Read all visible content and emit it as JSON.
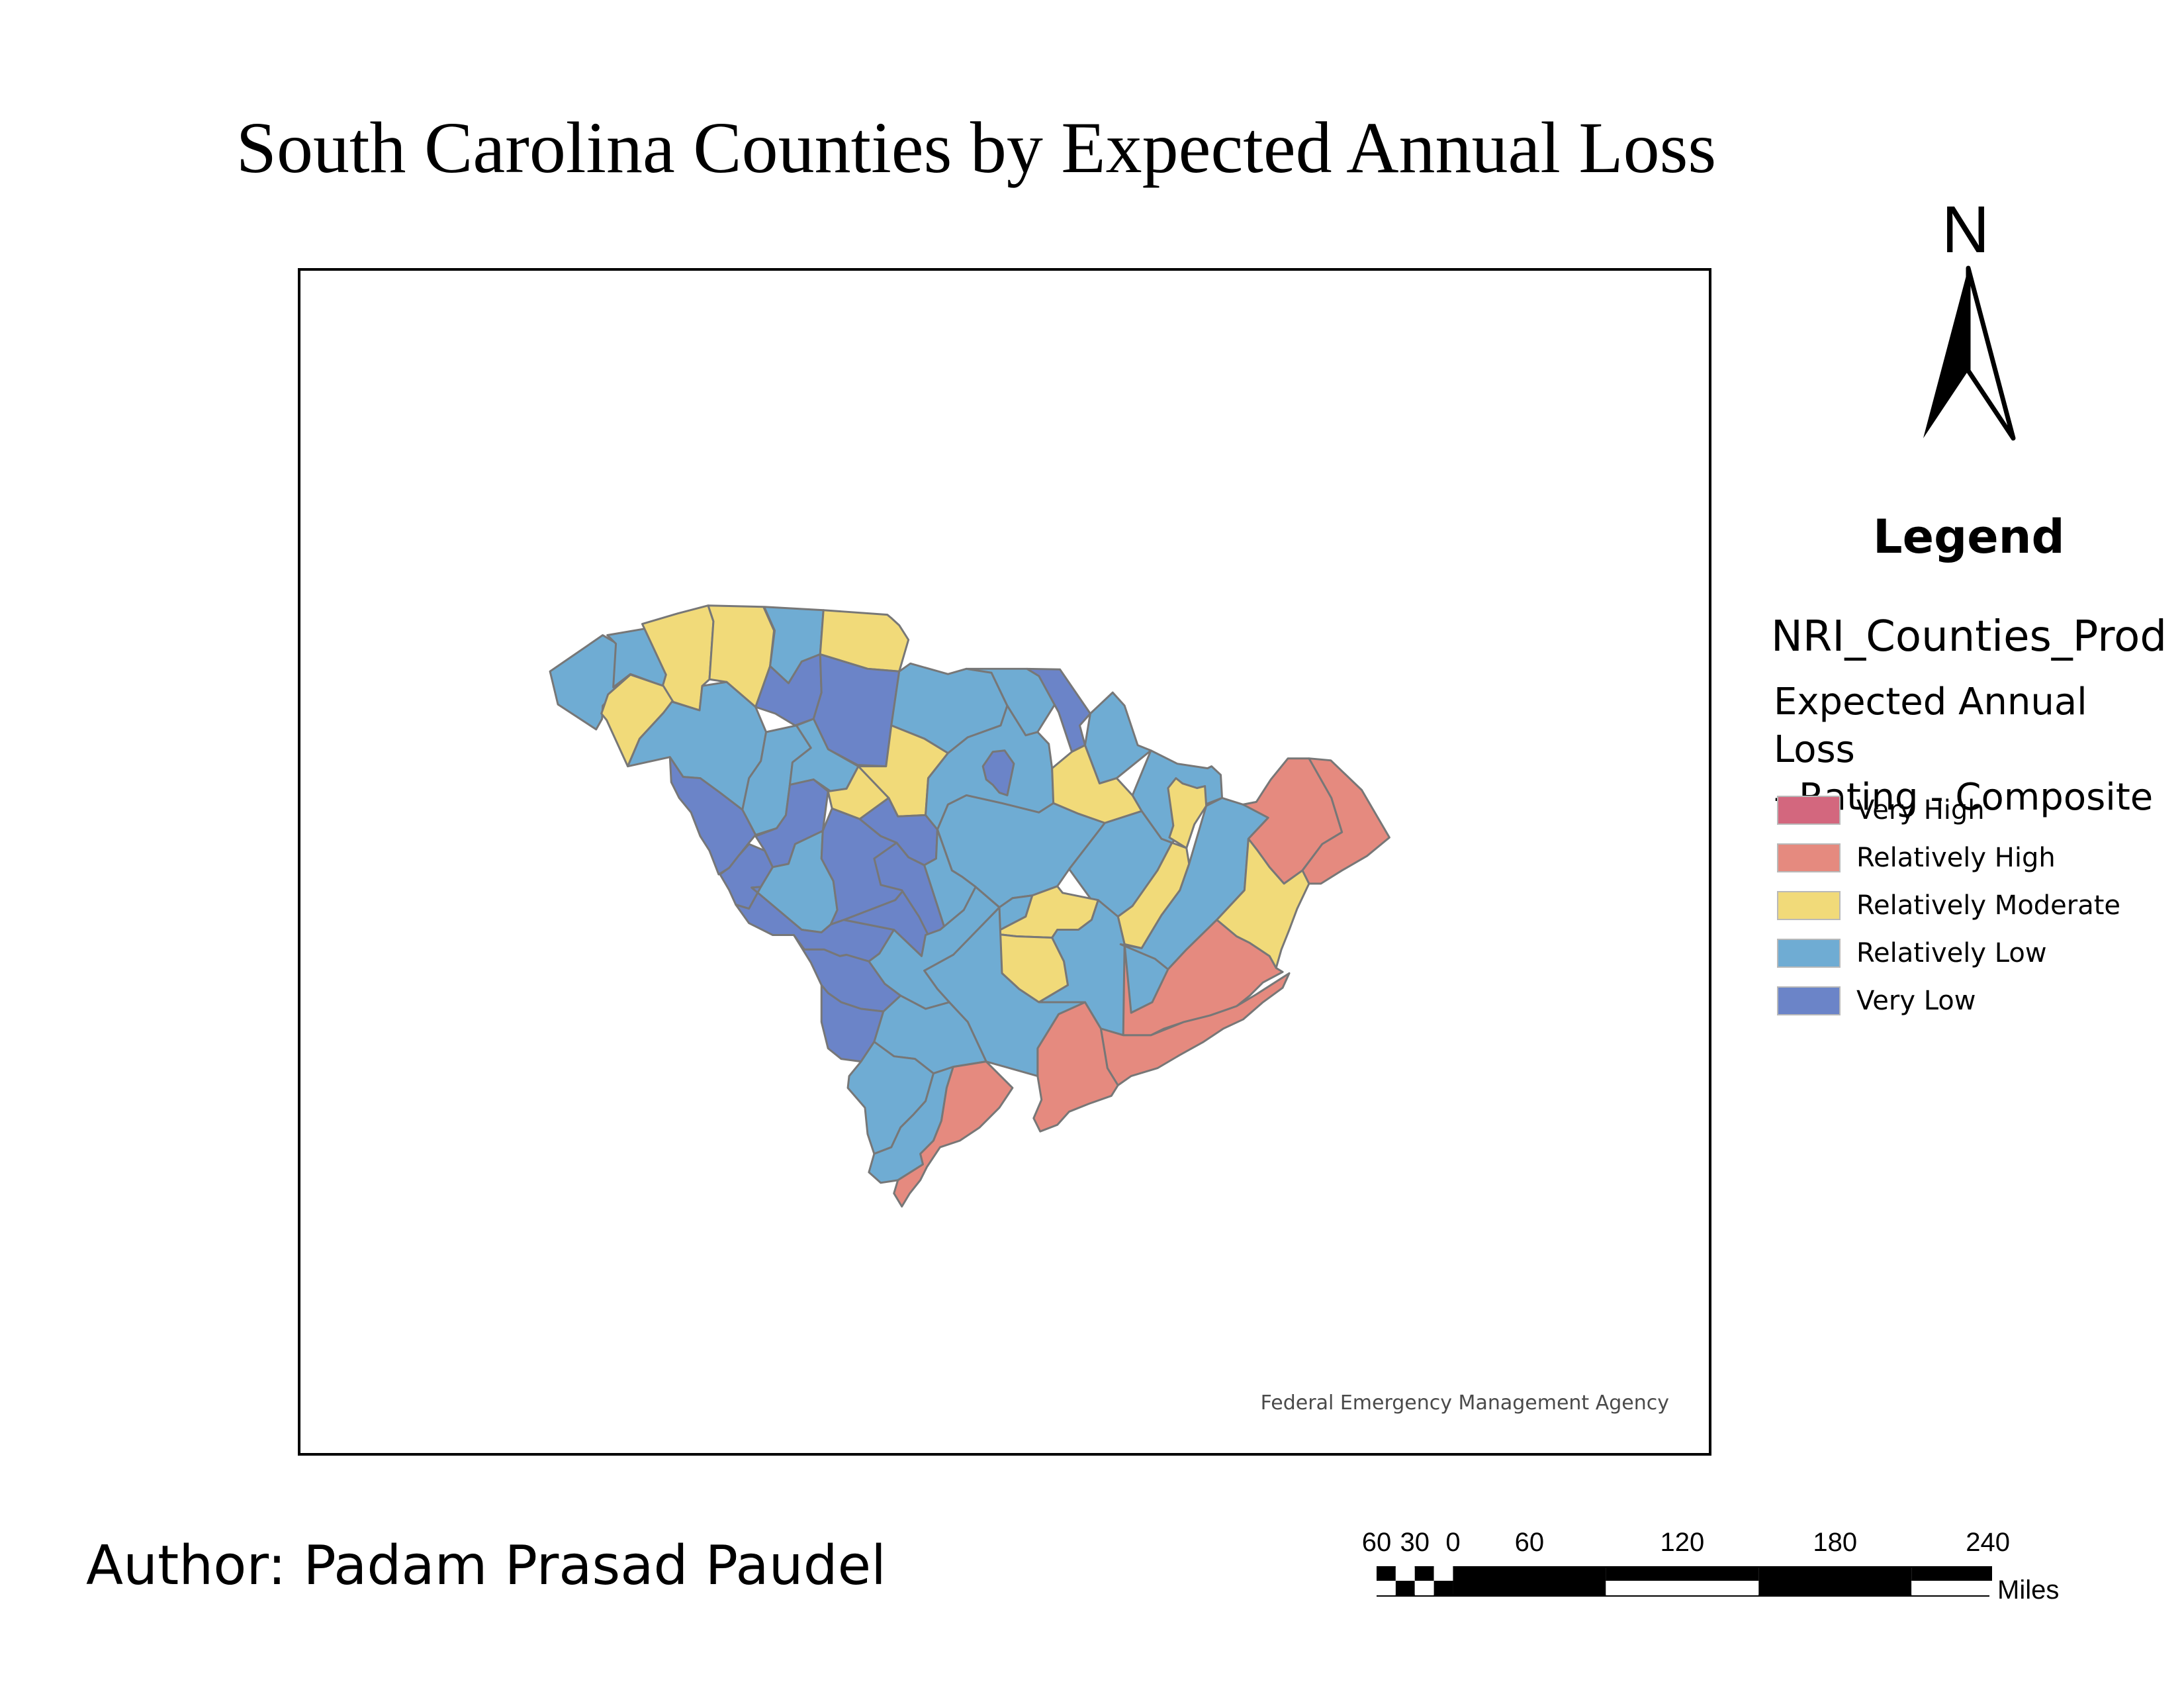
{
  "title": "South Carolina Counties by Expected Annual Loss",
  "north_arrow": {
    "letter": "N"
  },
  "legend": {
    "heading": "Legend",
    "layer_name": "NRI_Counties_Prod",
    "field_name_line1": "Expected Annual Loss",
    "field_name_line2": "- Rating - Composite",
    "classes": [
      {
        "label": "Very High",
        "color": "#d3677e"
      },
      {
        "label": "Relatively High",
        "color": "#e58a7f"
      },
      {
        "label": "Relatively Moderate",
        "color": "#f1da79"
      },
      {
        "label": "Relatively Low",
        "color": "#6facd3"
      },
      {
        "label": "Very Low",
        "color": "#6b84c8"
      }
    ]
  },
  "map": {
    "credit": "Federal Emergency Management Agency",
    "county_outline_color": "#777777"
  },
  "author": "Author: Padam Prasad Paudel",
  "scale_bar": {
    "units": "Miles",
    "ticks": [
      "60",
      "30",
      "0",
      "60",
      "120",
      "180",
      "240"
    ]
  }
}
